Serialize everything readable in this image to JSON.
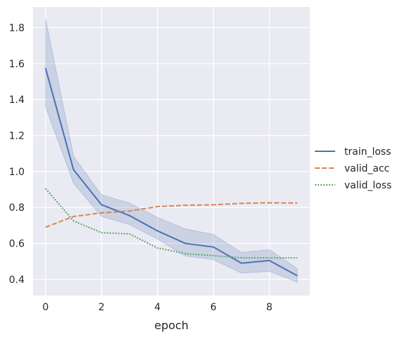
{
  "chart_data": {
    "type": "line",
    "xlabel": "epoch",
    "ylabel": "",
    "xlim": [
      -0.45,
      9.45
    ],
    "ylim": [
      0.31,
      1.915
    ],
    "xticks": [
      0,
      2,
      4,
      6,
      8
    ],
    "yticks": [
      0.4,
      0.6,
      0.8,
      1.0,
      1.2,
      1.4,
      1.6,
      1.8
    ],
    "xtick_labels": [
      "0",
      "2",
      "4",
      "6",
      "8"
    ],
    "ytick_labels": [
      "0.4",
      "0.6",
      "0.8",
      "1.0",
      "1.2",
      "1.4",
      "1.6",
      "1.8"
    ],
    "grid": true,
    "legend_position": "right",
    "x": [
      0,
      1,
      2,
      3,
      4,
      5,
      6,
      7,
      8,
      9
    ],
    "series": [
      {
        "name": "train_loss",
        "color": "#4c72b0",
        "dash": "solid",
        "values": [
          1.575,
          1.01,
          0.815,
          0.755,
          0.67,
          0.6,
          0.58,
          0.49,
          0.505,
          0.42
        ],
        "ci_lower": [
          1.36,
          0.935,
          0.75,
          0.705,
          0.625,
          0.53,
          0.51,
          0.435,
          0.445,
          0.385
        ],
        "ci_upper": [
          1.85,
          1.085,
          0.87,
          0.825,
          0.745,
          0.68,
          0.65,
          0.55,
          0.565,
          0.46
        ]
      },
      {
        "name": "valid_acc",
        "color": "#dd8452",
        "dash": "dashed",
        "values": [
          0.69,
          0.75,
          0.77,
          0.78,
          0.805,
          0.812,
          0.815,
          0.823,
          0.826,
          0.825
        ]
      },
      {
        "name": "valid_loss",
        "color": "#55a868",
        "dash": "dotted",
        "values": [
          0.905,
          0.725,
          0.66,
          0.653,
          0.575,
          0.543,
          0.532,
          0.52,
          0.52,
          0.52
        ]
      }
    ]
  }
}
